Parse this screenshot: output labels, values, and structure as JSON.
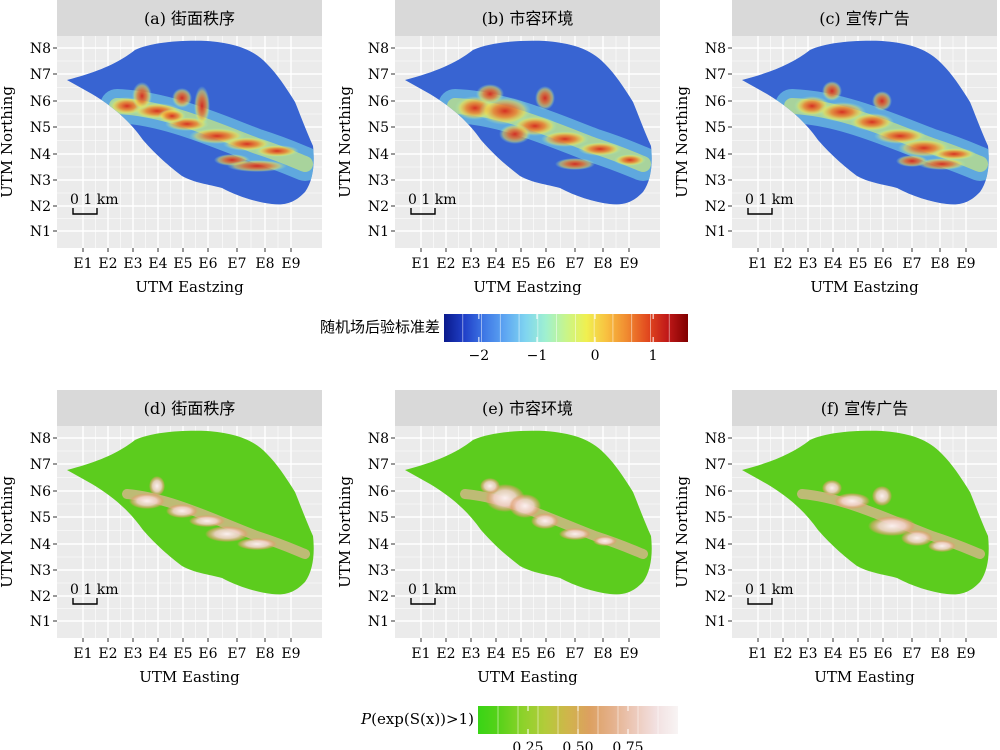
{
  "panels": [
    {
      "title": "(a) 街面秩序",
      "xlabel": "UTM Eastzing",
      "ylabel": "UTM Northing",
      "scale_label": "0   1 km"
    },
    {
      "title": "(b) 市容环境",
      "xlabel": "UTM Eastzing",
      "ylabel": "UTM Northing",
      "scale_label": "0   1 km"
    },
    {
      "title": "(c) 宣传广告",
      "xlabel": "UTM Eastzing",
      "ylabel": "UTM Northing",
      "scale_label": "0   1 km"
    },
    {
      "title": "(d) 街面秩序",
      "xlabel": "UTM Easting",
      "ylabel": "UTM Northing",
      "scale_label": "0   1 km"
    },
    {
      "title": "(e) 市容环境",
      "xlabel": "UTM Easting",
      "ylabel": "UTM Northing",
      "scale_label": "0   1 km"
    },
    {
      "title": "(f) 宣传广告",
      "xlabel": "UTM Easting",
      "ylabel": "UTM Northing",
      "scale_label": "0   1 km"
    }
  ],
  "x_ticks": [
    "E1",
    "E2",
    "E3",
    "E4",
    "E5",
    "E6",
    "E7",
    "E8",
    "E9"
  ],
  "y_ticks": [
    "N8",
    "N7",
    "N6",
    "N5",
    "N4",
    "N3",
    "N2",
    "N1"
  ],
  "legend_top": {
    "title": "随机场后验标准差",
    "ticks": [
      "−2",
      "−1",
      "0",
      "1"
    ],
    "tick_values": [
      -2,
      -1,
      0,
      1
    ],
    "range": [
      -2.6,
      1.6
    ],
    "colors": [
      "#0a1a8c",
      "#2040c8",
      "#3f79e6",
      "#5ea6f2",
      "#7fd4f0",
      "#9ff0d0",
      "#c8f58a",
      "#f0f050",
      "#f8c040",
      "#f08a30",
      "#e24a1f",
      "#c01818",
      "#800000"
    ]
  },
  "legend_bottom": {
    "title_prefix": "P",
    "title_rest": "(exp(S(x))>1)",
    "ticks": [
      "0.25",
      "0.50",
      "0.75"
    ],
    "tick_values": [
      0.25,
      0.5,
      0.75
    ],
    "range": [
      0,
      1
    ],
    "colors": [
      "#38d415",
      "#5ad21a",
      "#8cd22a",
      "#b2cc3a",
      "#cfb64a",
      "#dca060",
      "#e4b08a",
      "#ecc8b8",
      "#f2e0e0",
      "#f8f4f4"
    ]
  },
  "colors": {
    "panel_bg": "#ebebeb",
    "grid": "#ffffff",
    "strip": "#d9d9d9",
    "region_top": "#3f6fd8",
    "region_bottom": "#5ccc1e"
  }
}
